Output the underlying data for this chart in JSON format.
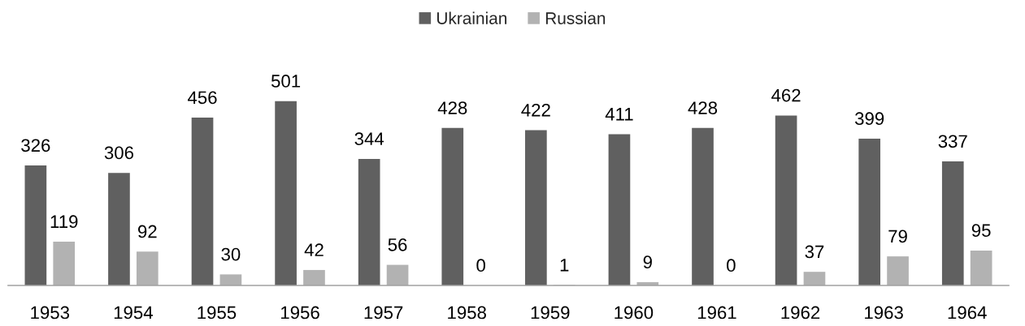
{
  "chart_data": {
    "type": "bar",
    "categories": [
      "1953",
      "1954",
      "1955",
      "1956",
      "1957",
      "1958",
      "1959",
      "1960",
      "1961",
      "1962",
      "1963",
      "1964"
    ],
    "series": [
      {
        "name": "Ukrainian",
        "color": "#606060",
        "values": [
          326,
          306,
          456,
          501,
          344,
          428,
          422,
          411,
          428,
          462,
          399,
          337
        ]
      },
      {
        "name": "Russian",
        "color": "#b2b2b2",
        "values": [
          119,
          92,
          30,
          42,
          56,
          0,
          1,
          9,
          0,
          37,
          79,
          95
        ]
      }
    ],
    "data_labels": true,
    "legend": "top",
    "grid": false
  }
}
